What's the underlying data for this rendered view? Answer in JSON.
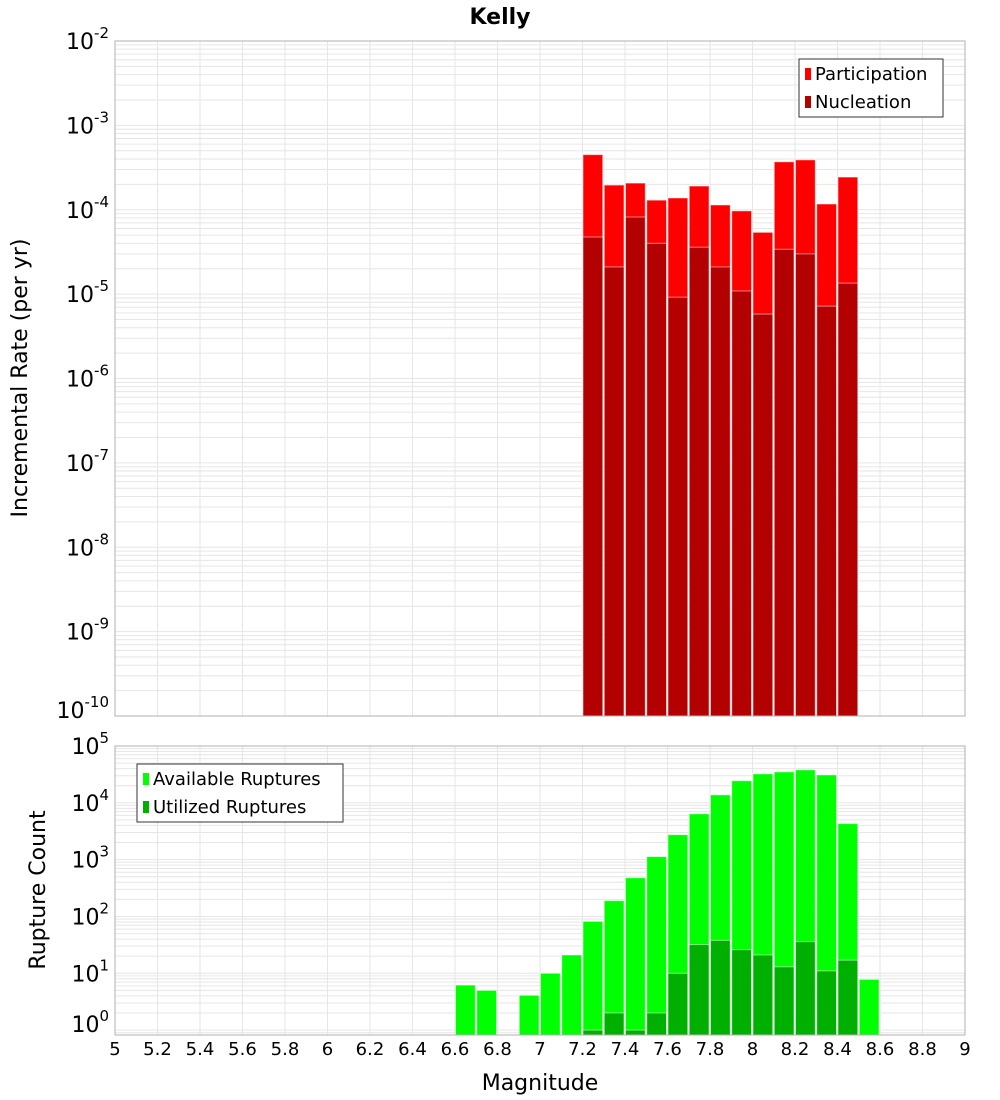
{
  "chart_data": [
    {
      "type": "bar",
      "title": "Kelly",
      "xlabel": "Magnitude",
      "ylabel": "Incremental Rate (per yr)",
      "yscale": "log",
      "xlim": [
        5,
        9
      ],
      "ylim": [
        1e-10,
        0.01
      ],
      "grid": true,
      "legend_position": "top-right",
      "x": [
        7.25,
        7.35,
        7.45,
        7.55,
        7.65,
        7.75,
        7.85,
        7.95,
        8.05,
        8.15,
        8.25,
        8.35,
        8.45
      ],
      "series": [
        {
          "name": "Participation",
          "color": "#ff0000",
          "values": [
            0.00045,
            0.000196,
            0.000207,
            0.00013,
            0.000138,
            0.000191,
            0.000114,
            9.7e-05,
            5.4e-05,
            0.00037,
            0.00039,
            0.000117,
            0.000244
          ]
        },
        {
          "name": "Nucleation",
          "color": "#b30000",
          "values": [
            4.75e-05,
            2.1e-05,
            8.2e-05,
            4e-05,
            9.2e-06,
            3.6e-05,
            2.1e-05,
            1.09e-05,
            5.8e-06,
            3.4e-05,
            3e-05,
            7.2e-06,
            1.35e-05
          ]
        }
      ],
      "yticks": [
        {
          "base": "10",
          "exp": "-10"
        },
        {
          "base": "10",
          "exp": "-9"
        },
        {
          "base": "10",
          "exp": "-8"
        },
        {
          "base": "10",
          "exp": "-7"
        },
        {
          "base": "10",
          "exp": "-6"
        },
        {
          "base": "10",
          "exp": "-5"
        },
        {
          "base": "10",
          "exp": "-4"
        },
        {
          "base": "10",
          "exp": "-3"
        },
        {
          "base": "10",
          "exp": "-2"
        }
      ]
    },
    {
      "type": "bar",
      "xlabel": "Magnitude",
      "ylabel": "Rupture Count",
      "yscale": "log",
      "xlim": [
        5,
        9
      ],
      "ylim": [
        0.82,
        100000.0
      ],
      "grid": true,
      "legend_position": "top-left",
      "x": [
        6.65,
        6.75,
        6.95,
        7.05,
        7.15,
        7.25,
        7.35,
        7.45,
        7.55,
        7.65,
        7.75,
        7.85,
        7.95,
        8.05,
        8.15,
        8.25,
        8.35,
        8.45,
        8.55
      ],
      "series": [
        {
          "name": "Available Ruptures",
          "color": "#00ff00",
          "values": [
            6.2,
            5.0,
            4.1,
            10,
            21,
            82,
            190,
            480,
            1130,
            2750,
            6400,
            13800,
            24500,
            32300,
            35000,
            38000,
            31000,
            4300,
            7.8
          ]
        },
        {
          "name": "Utilized Ruptures",
          "color": "#00b000",
          "values": [
            null,
            null,
            null,
            null,
            null,
            1,
            2,
            1,
            2,
            10,
            32,
            38,
            26,
            21,
            13,
            36,
            11,
            17,
            null
          ]
        }
      ],
      "yticks": [
        {
          "base": "10",
          "exp": "0"
        },
        {
          "base": "10",
          "exp": "1"
        },
        {
          "base": "10",
          "exp": "2"
        },
        {
          "base": "10",
          "exp": "3"
        },
        {
          "base": "10",
          "exp": "4"
        },
        {
          "base": "10",
          "exp": "5"
        }
      ],
      "xticks": [
        "5",
        "5.2",
        "5.4",
        "5.6",
        "5.8",
        "6",
        "6.2",
        "6.4",
        "6.6",
        "6.8",
        "7",
        "7.2",
        "7.4",
        "7.6",
        "7.8",
        "8",
        "8.2",
        "8.4",
        "8.6",
        "8.8",
        "9"
      ]
    }
  ]
}
